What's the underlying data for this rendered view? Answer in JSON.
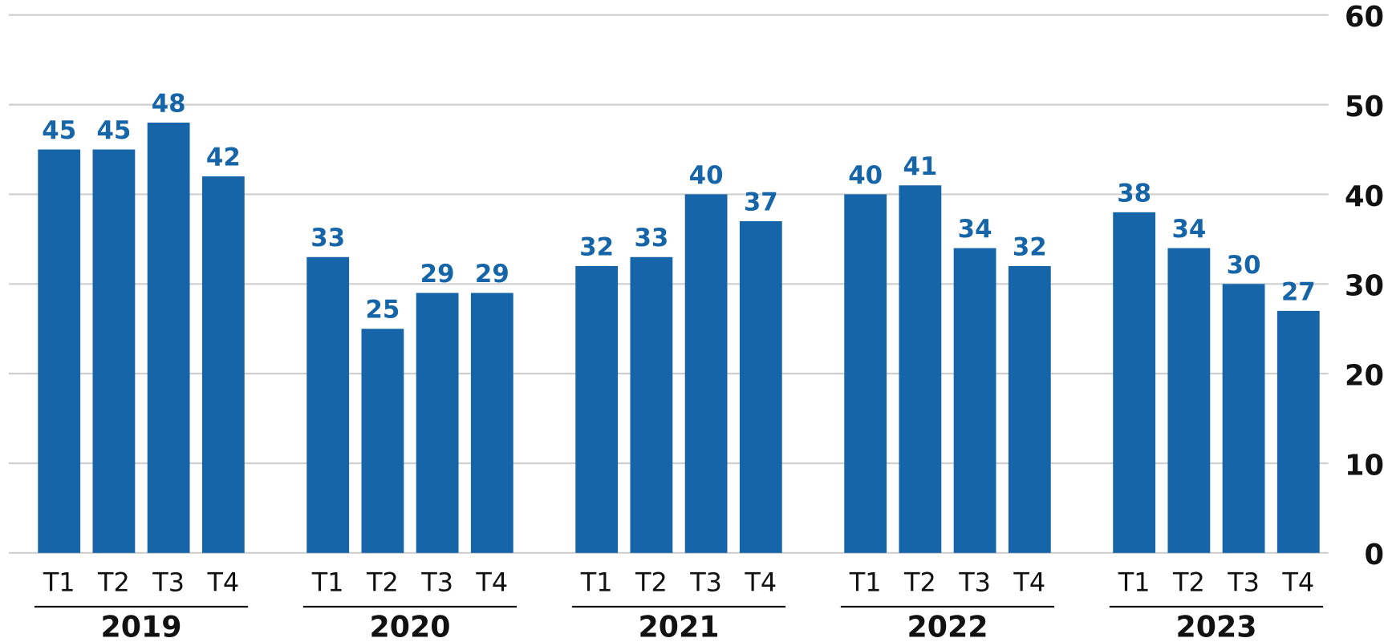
{
  "chart_data": {
    "type": "bar",
    "color": "#1565a8",
    "groups": [
      {
        "name": "2019",
        "categories": [
          "T1",
          "T2",
          "T3",
          "T4"
        ],
        "values": [
          45,
          45,
          48,
          42
        ]
      },
      {
        "name": "2020",
        "categories": [
          "T1",
          "T2",
          "T3",
          "T4"
        ],
        "values": [
          33,
          25,
          29,
          29
        ]
      },
      {
        "name": "2021",
        "categories": [
          "T1",
          "T2",
          "T3",
          "T4"
        ],
        "values": [
          32,
          33,
          40,
          37
        ]
      },
      {
        "name": "2022",
        "categories": [
          "T1",
          "T2",
          "T3",
          "T4"
        ],
        "values": [
          40,
          41,
          34,
          32
        ]
      },
      {
        "name": "2023",
        "categories": [
          "T1",
          "T2",
          "T3",
          "T4"
        ],
        "values": [
          38,
          34,
          30,
          27
        ]
      }
    ],
    "ylim": [
      0,
      60
    ],
    "yticks": [
      0,
      10,
      20,
      30,
      40,
      50,
      60
    ],
    "grid": true,
    "y_axis_side": "right"
  }
}
